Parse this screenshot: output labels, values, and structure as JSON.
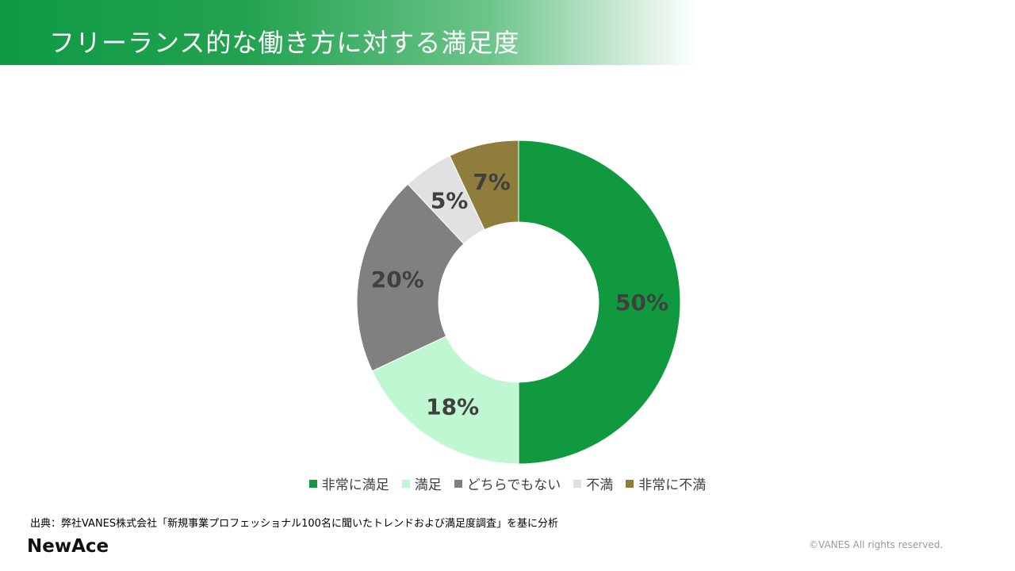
{
  "header": {
    "title": "フリーランス的な働き方に対する満足度"
  },
  "chart_data": {
    "type": "pie",
    "variant": "donut",
    "title": "",
    "slices": [
      {
        "name": "非常に満足",
        "value": 50,
        "label": "50%",
        "color": "#10993f"
      },
      {
        "name": "満足",
        "value": 18,
        "label": "18%",
        "color": "#bff7d3"
      },
      {
        "name": "どちらでもない",
        "value": 20,
        "label": "20%",
        "color": "#808080"
      },
      {
        "name": "不満",
        "value": 5,
        "label": "5%",
        "color": "#e1e1e1"
      },
      {
        "name": "非常に不満",
        "value": 7,
        "label": "7%",
        "color": "#8f7d3b"
      }
    ],
    "legend_position": "bottom"
  },
  "footer": {
    "source": "出典：弊社VANES株式会社「新規事業プロフェッショナル100名に聞いたトレンドおよび満足度調査」を基に分析",
    "logo": "NewAce",
    "copyright": "©VANES All rights reserved."
  }
}
